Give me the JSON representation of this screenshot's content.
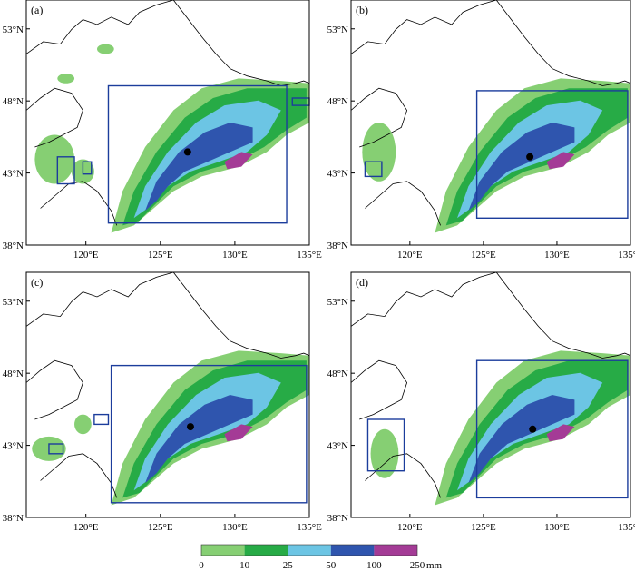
{
  "figure": {
    "panels": [
      {
        "label": "(a)",
        "zone_group": "a"
      },
      {
        "label": "(b)",
        "zone_group": "b"
      },
      {
        "label": "(c)",
        "zone_group": "c"
      },
      {
        "label": "(d)",
        "zone_group": "d"
      }
    ],
    "lat_ticks": [
      "53°N",
      "48°N",
      "43°N",
      "38°N"
    ],
    "lon_ticks": [
      "120°E",
      "125°E",
      "130°E",
      "135°E"
    ],
    "lat_values": [
      53,
      48,
      43,
      38
    ],
    "lon_values": [
      120,
      125,
      130,
      135
    ],
    "lon_range": [
      116,
      135
    ],
    "lat_range": [
      38,
      55
    ]
  },
  "legend": {
    "labels": [
      "0",
      "10",
      "25",
      "50",
      "100",
      "250"
    ],
    "unit": "mm",
    "colors": [
      "#86cf73",
      "#27ab46",
      "#6cc5e4",
      "#2f55ae",
      "#a43b96"
    ]
  },
  "colors": {
    "frame": "#000000",
    "box": "#1c3d9c",
    "coast": "#000000",
    "station": "#000000"
  }
}
